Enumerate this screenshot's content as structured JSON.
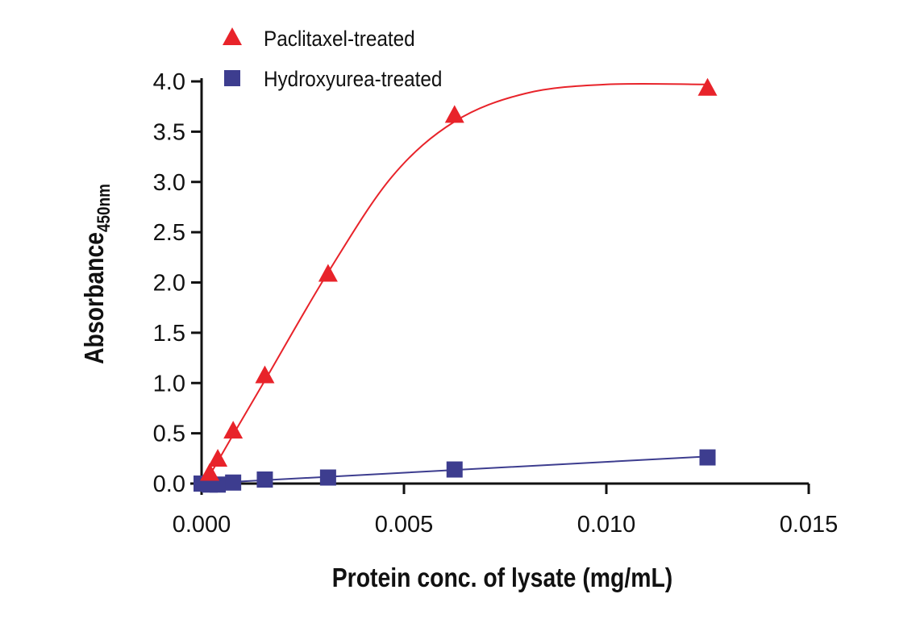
{
  "chart_data": {
    "type": "scatter",
    "xlabel": "Protein conc. of lysate (mg/mL)",
    "ylabel": "Absorbance",
    "ylabel_subscript": "450nm",
    "xlim": [
      0,
      0.015
    ],
    "ylim": [
      0,
      4.0
    ],
    "xticks": [
      "0.000",
      "0.005",
      "0.010",
      "0.015"
    ],
    "xtick_values": [
      0,
      0.005,
      0.01,
      0.015
    ],
    "yticks": [
      "0.0",
      "0.5",
      "1.0",
      "1.5",
      "2.0",
      "2.5",
      "3.0",
      "3.5",
      "4.0"
    ],
    "ytick_values": [
      0,
      0.5,
      1.0,
      1.5,
      2.0,
      2.5,
      3.0,
      3.5,
      4.0
    ],
    "grid": false,
    "legend_position": "top",
    "series": [
      {
        "name": "Paclitaxel-treated",
        "color": "#e8232a",
        "marker": "triangle",
        "x": [
          0.0002,
          0.0004,
          0.00078,
          0.0015625,
          0.003125,
          0.00625,
          0.0125
        ],
        "y": [
          0.1,
          0.24,
          0.52,
          1.07,
          2.08,
          3.66,
          3.93
        ],
        "fit": {
          "x": [
            0,
            0.0002,
            0.0004,
            0.0008,
            0.0016,
            0.003125,
            0.0047,
            0.00625,
            0.008,
            0.01,
            0.0125
          ],
          "y": [
            0,
            0.09,
            0.22,
            0.5,
            1.05,
            2.1,
            3.05,
            3.6,
            3.88,
            3.97,
            3.97
          ]
        }
      },
      {
        "name": "Hydroxyurea-treated",
        "color": "#3d3d8f",
        "marker": "square",
        "x": [
          0,
          0.0002,
          0.0004,
          0.00078,
          0.0015625,
          0.003125,
          0.00625,
          0.0125
        ],
        "y": [
          0.0,
          -0.01,
          -0.01,
          0.01,
          0.04,
          0.06,
          0.14,
          0.26
        ],
        "fit": {
          "x": [
            0,
            0.0125
          ],
          "y": [
            0.0,
            0.27
          ]
        }
      }
    ]
  }
}
